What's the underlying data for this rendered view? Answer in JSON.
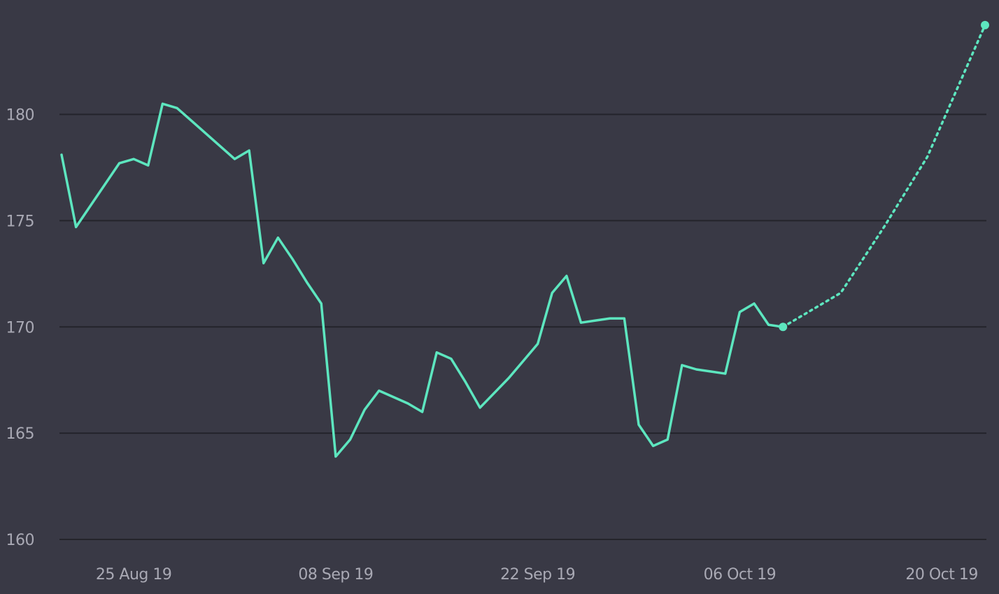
{
  "colors": {
    "background": "#393945",
    "line": "#5de6bf",
    "grid": "#24242b",
    "tick_text": "#a9a9b4"
  },
  "chart_data": {
    "type": "line",
    "title": "",
    "xlabel": "",
    "ylabel": "",
    "grid": true,
    "legend": "none",
    "ylim": [
      160,
      184
    ],
    "xlim": [
      "2019-08-20",
      "2019-10-23"
    ],
    "yticks": [
      160,
      165,
      170,
      175,
      180
    ],
    "ytick_labels": [
      "160",
      "165",
      "170",
      "175",
      "180"
    ],
    "xticks": [
      "2019-08-25",
      "2019-09-08",
      "2019-09-22",
      "2019-10-06",
      "2019-10-20"
    ],
    "xtick_labels": [
      "25 Aug 19",
      "08 Sep 19",
      "22 Sep 19",
      "06 Oct 19",
      "20 Oct 19"
    ],
    "series": [
      {
        "style": "solid",
        "x": [
          "2019-08-20",
          "2019-08-21",
          "2019-08-22",
          "2019-08-23",
          "2019-08-24",
          "2019-08-25",
          "2019-08-26",
          "2019-08-27",
          "2019-08-28",
          "2019-08-29",
          "2019-08-30",
          "2019-08-31",
          "2019-09-01",
          "2019-09-02",
          "2019-09-03",
          "2019-09-04",
          "2019-09-05",
          "2019-09-06",
          "2019-09-07",
          "2019-09-08",
          "2019-09-09",
          "2019-09-10",
          "2019-09-11",
          "2019-09-12",
          "2019-09-13",
          "2019-09-14",
          "2019-09-15",
          "2019-09-16",
          "2019-09-17",
          "2019-09-18",
          "2019-09-19",
          "2019-09-20",
          "2019-09-21",
          "2019-09-22",
          "2019-09-23",
          "2019-09-24",
          "2019-09-25",
          "2019-09-26",
          "2019-09-27",
          "2019-09-28",
          "2019-09-29",
          "2019-09-30",
          "2019-10-01",
          "2019-10-02",
          "2019-10-03",
          "2019-10-04",
          "2019-10-05",
          "2019-10-06",
          "2019-10-07",
          "2019-10-08",
          "2019-10-09"
        ],
        "y": [
          178.1,
          174.7,
          175.7,
          176.7,
          177.7,
          177.9,
          177.6,
          180.5,
          180.3,
          179.7,
          179.1,
          178.5,
          177.9,
          178.3,
          173.0,
          174.2,
          173.2,
          172.1,
          171.1,
          163.9,
          164.7,
          166.1,
          167.0,
          166.7,
          166.4,
          166.0,
          168.8,
          168.5,
          167.4,
          166.2,
          166.9,
          167.6,
          168.4,
          169.2,
          171.6,
          172.4,
          170.2,
          170.3,
          170.4,
          170.4,
          165.4,
          164.4,
          164.7,
          168.2,
          168.0,
          167.9,
          167.8,
          170.7,
          171.1,
          170.1,
          170.0
        ]
      },
      {
        "style": "dotted",
        "x": [
          "2019-10-09",
          "2019-10-13",
          "2019-10-16",
          "2019-10-19",
          "2019-10-23"
        ],
        "y": [
          170.0,
          171.6,
          174.7,
          178.0,
          184.2
        ]
      }
    ]
  }
}
